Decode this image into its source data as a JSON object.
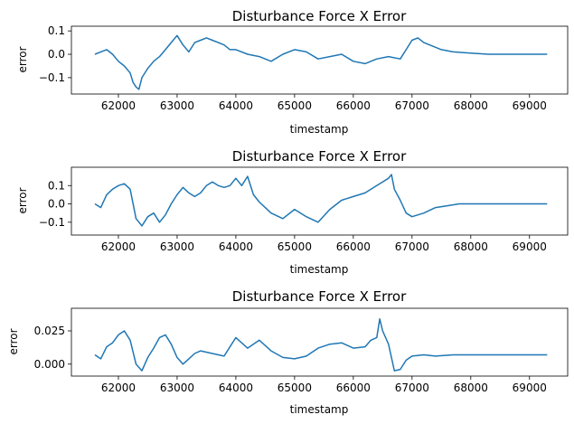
{
  "figure": {
    "background": "#ffffff",
    "line_color": "#1f77b4"
  },
  "chart_data": [
    {
      "type": "line",
      "title": "Disturbance Force X Error",
      "xlabel": "timestamp",
      "ylabel": "error",
      "xlim": [
        61200,
        69650
      ],
      "ylim": [
        -0.17,
        0.12
      ],
      "xticks": [
        62000,
        63000,
        64000,
        65000,
        66000,
        67000,
        68000,
        69000
      ],
      "xtick_labels": [
        "62000",
        "63000",
        "64000",
        "65000",
        "66000",
        "67000",
        "68000",
        "69000"
      ],
      "yticks": [
        -0.1,
        0.0,
        0.1
      ],
      "ytick_labels": [
        "−0.1",
        "0.0",
        "0.1"
      ],
      "grid": false,
      "series": [
        {
          "x": [
            61600,
            61700,
            61800,
            61900,
            62000,
            62100,
            62200,
            62250,
            62300,
            62350,
            62400,
            62500,
            62600,
            62700,
            62800,
            62900,
            63000,
            63100,
            63200,
            63300,
            63400,
            63500,
            63600,
            63700,
            63800,
            63900,
            64000,
            64200,
            64400,
            64600,
            64800,
            65000,
            65200,
            65400,
            65600,
            65800,
            66000,
            66200,
            66400,
            66600,
            66800,
            66900,
            67000,
            67100,
            67200,
            67300,
            67400,
            67500,
            67700,
            68000,
            68300,
            68600,
            68900,
            69300
          ],
          "values": [
            0.0,
            0.01,
            0.02,
            0.0,
            -0.03,
            -0.05,
            -0.08,
            -0.12,
            -0.14,
            -0.15,
            -0.1,
            -0.06,
            -0.03,
            -0.01,
            0.02,
            0.05,
            0.08,
            0.04,
            0.01,
            0.05,
            0.06,
            0.07,
            0.06,
            0.05,
            0.04,
            0.02,
            0.02,
            0.0,
            -0.01,
            -0.03,
            0.0,
            0.02,
            0.01,
            -0.02,
            -0.01,
            0.0,
            -0.03,
            -0.04,
            -0.02,
            -0.01,
            -0.02,
            0.02,
            0.06,
            0.07,
            0.05,
            0.04,
            0.03,
            0.02,
            0.01,
            0.005,
            0.0,
            0.0,
            0.0,
            0.0
          ]
        }
      ]
    },
    {
      "type": "line",
      "title": "Disturbance Force X Error",
      "xlabel": "timestamp",
      "ylabel": "error",
      "xlim": [
        61200,
        69650
      ],
      "ylim": [
        -0.17,
        0.2
      ],
      "xticks": [
        62000,
        63000,
        64000,
        65000,
        66000,
        67000,
        68000,
        69000
      ],
      "xtick_labels": [
        "62000",
        "63000",
        "64000",
        "65000",
        "66000",
        "67000",
        "68000",
        "69000"
      ],
      "yticks": [
        -0.1,
        0.0,
        0.1
      ],
      "ytick_labels": [
        "−0.1",
        "0.0",
        "0.1"
      ],
      "grid": false,
      "series": [
        {
          "x": [
            61600,
            61700,
            61800,
            61900,
            62000,
            62100,
            62200,
            62300,
            62400,
            62500,
            62600,
            62700,
            62800,
            62900,
            63000,
            63100,
            63200,
            63300,
            63400,
            63500,
            63600,
            63700,
            63800,
            63900,
            64000,
            64100,
            64200,
            64300,
            64400,
            64500,
            64600,
            64800,
            65000,
            65200,
            65400,
            65600,
            65800,
            66000,
            66200,
            66400,
            66500,
            66600,
            66650,
            66700,
            66800,
            66900,
            67000,
            67200,
            67400,
            67600,
            67800,
            68000,
            68400,
            68800,
            69300
          ],
          "values": [
            0.0,
            -0.02,
            0.05,
            0.08,
            0.1,
            0.11,
            0.08,
            -0.08,
            -0.12,
            -0.07,
            -0.05,
            -0.1,
            -0.06,
            0.0,
            0.05,
            0.09,
            0.06,
            0.04,
            0.06,
            0.1,
            0.12,
            0.1,
            0.09,
            0.1,
            0.14,
            0.1,
            0.15,
            0.05,
            0.01,
            -0.02,
            -0.05,
            -0.08,
            -0.03,
            -0.07,
            -0.1,
            -0.03,
            0.02,
            0.04,
            0.06,
            0.1,
            0.12,
            0.14,
            0.16,
            0.08,
            0.02,
            -0.05,
            -0.07,
            -0.05,
            -0.02,
            -0.01,
            0.0,
            0.0,
            0.0,
            0.0,
            0.0
          ]
        }
      ]
    },
    {
      "type": "line",
      "title": "Disturbance Force X Error",
      "xlabel": "timestamp",
      "ylabel": "error",
      "xlim": [
        61200,
        69650
      ],
      "ylim": [
        -0.009,
        0.042
      ],
      "xticks": [
        62000,
        63000,
        64000,
        65000,
        66000,
        67000,
        68000,
        69000
      ],
      "xtick_labels": [
        "62000",
        "63000",
        "64000",
        "65000",
        "66000",
        "67000",
        "68000",
        "69000"
      ],
      "yticks": [
        0.0,
        0.025
      ],
      "ytick_labels": [
        "0.000",
        "0.025"
      ],
      "grid": false,
      "series": [
        {
          "x": [
            61600,
            61700,
            61800,
            61900,
            62000,
            62100,
            62200,
            62300,
            62400,
            62500,
            62600,
            62700,
            62800,
            62900,
            63000,
            63100,
            63200,
            63300,
            63400,
            63600,
            63800,
            64000,
            64200,
            64400,
            64600,
            64800,
            65000,
            65200,
            65400,
            65600,
            65800,
            66000,
            66200,
            66300,
            66400,
            66450,
            66500,
            66600,
            66700,
            66800,
            66900,
            67000,
            67200,
            67400,
            67700,
            68000,
            68400,
            68800,
            69300
          ],
          "values": [
            0.007,
            0.004,
            0.013,
            0.016,
            0.022,
            0.025,
            0.018,
            0.0,
            -0.005,
            0.005,
            0.012,
            0.02,
            0.022,
            0.015,
            0.005,
            0.0,
            0.004,
            0.008,
            0.01,
            0.008,
            0.006,
            0.02,
            0.012,
            0.018,
            0.01,
            0.005,
            0.004,
            0.006,
            0.012,
            0.015,
            0.016,
            0.012,
            0.013,
            0.018,
            0.02,
            0.034,
            0.025,
            0.015,
            -0.005,
            -0.004,
            0.003,
            0.006,
            0.007,
            0.006,
            0.007,
            0.007,
            0.007,
            0.007,
            0.007
          ]
        }
      ]
    }
  ]
}
